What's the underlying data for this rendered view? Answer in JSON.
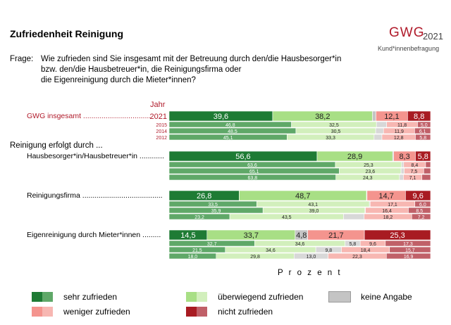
{
  "title": "Zufriedenheit Reinigung",
  "logo": {
    "brand": "GWG",
    "year": "2021",
    "subtitle": "Kund*innenbefragung"
  },
  "question": {
    "label": "Frage:",
    "lines": [
      "Wie zufrieden sind Sie insgesamt mit der Betreuung durch den/die Hausbesorger*in",
      "bzw. den/die Hausbetreuer*in, die Reinigungsfirma oder",
      "die Eigenreinigung durch die Mieter*innen?"
    ]
  },
  "jahr_label": "Jahr",
  "section_heading": "Reinigung erfolgt durch ...",
  "colors": {
    "sehr_zufrieden": [
      "#1e7b34",
      "#5fa868"
    ],
    "ueberwiegend_zufrieden": [
      "#a8df85",
      "#d2efbc"
    ],
    "keine_angabe": [
      "#c4c4c4",
      "#d8d8d8"
    ],
    "weniger_zufrieden": [
      "#f4948e",
      "#f7b7b2"
    ],
    "nicht_zufrieden": [
      "#a81b22",
      "#c06068"
    ]
  },
  "chart_data": {
    "type": "stacked-horizontal-bar",
    "xlabel": "P r o z e n t",
    "xlim": [
      0,
      100
    ],
    "legend": [
      {
        "key": "sehr_zufrieden",
        "label": "sehr zufrieden"
      },
      {
        "key": "ueberwiegend_zufrieden",
        "label": "überwiegend zufrieden"
      },
      {
        "key": "keine_angabe",
        "label": "keine Angabe"
      },
      {
        "key": "weniger_zufrieden",
        "label": "weniger zufrieden"
      },
      {
        "key": "nicht_zufrieden",
        "label": "nicht zufrieden"
      }
    ],
    "groups": [
      {
        "label": "GWG insgesamt .................................",
        "style": "red",
        "rows": [
          {
            "year": "2021",
            "values": [
              39.6,
              38.2,
              1.3,
              12.1,
              8.8
            ],
            "labels": [
              "39,6",
              "38,2",
              "",
              "12,1",
              "8,8"
            ]
          },
          {
            "year": "2015",
            "values": [
              46.8,
              32.5,
              3.9,
              11.8,
              5.0
            ],
            "labels": [
              "46,8",
              "32,5",
              "",
              "11,8",
              "5,0"
            ]
          },
          {
            "year": "2014",
            "values": [
              48.5,
              30.5,
              3.0,
              11.9,
              6.1
            ],
            "labels": [
              "48,5",
              "30,5",
              "",
              "11,9",
              "6,1"
            ]
          },
          {
            "year": "2012",
            "values": [
              45.1,
              33.3,
              3.0,
              12.8,
              5.8
            ],
            "labels": [
              "45,1",
              "33,3",
              "",
              "12,8",
              "5,8"
            ]
          }
        ]
      },
      {
        "label": "Hausbesorger*in/Hausbetreuer*in ............",
        "style": "black",
        "rows": [
          {
            "year": "",
            "values": [
              56.6,
              28.9,
              0.4,
              8.3,
              5.8
            ],
            "labels": [
              "56,6",
              "28,9",
              "",
              "8,3",
              "5,8"
            ]
          },
          {
            "year": "",
            "values": [
              63.6,
              25.3,
              0.8,
              8.4,
              1.9
            ],
            "labels": [
              "63,6",
              "25,3",
              "",
              "8,4",
              ""
            ]
          },
          {
            "year": "",
            "values": [
              65.1,
              23.6,
              1.2,
              7.5,
              2.6
            ],
            "labels": [
              "65,1",
              "23,6",
              "",
              "7,5",
              ""
            ]
          },
          {
            "year": "",
            "values": [
              63.8,
              24.3,
              1.5,
              7.1,
              3.3
            ],
            "labels": [
              "63,8",
              "24,3",
              "",
              "7,1",
              ""
            ]
          }
        ]
      },
      {
        "label": "Reinigungsfirma .......................................",
        "style": "black",
        "rows": [
          {
            "year": "",
            "values": [
              26.8,
              48.7,
              0.2,
              14.7,
              9.6
            ],
            "labels": [
              "26,8",
              "48,7",
              "",
              "14,7",
              "9,6"
            ]
          },
          {
            "year": "",
            "values": [
              33.5,
              43.1,
              0.3,
              17.1,
              6.0
            ],
            "labels": [
              "33,5",
              "43,1",
              "",
              "17,1",
              "6,0"
            ]
          },
          {
            "year": "",
            "values": [
              35.9,
              39.0,
              0.2,
              16.4,
              8.5
            ],
            "labels": [
              "35,9",
              "39,0",
              "",
              "16,4",
              "8,5"
            ]
          },
          {
            "year": "",
            "values": [
              23.2,
              43.5,
              7.9,
              18.2,
              7.2
            ],
            "labels": [
              "23,2",
              "43,5",
              "",
              "18,2",
              "7,2"
            ]
          }
        ]
      },
      {
        "label": "Eigenreinigung durch Mieter*innen  .........",
        "style": "black",
        "rows": [
          {
            "year": "",
            "values": [
              14.5,
              33.7,
              4.8,
              21.7,
              25.3
            ],
            "labels": [
              "14,5",
              "33,7",
              "4,8",
              "21,7",
              "25,3"
            ]
          },
          {
            "year": "",
            "values": [
              32.7,
              34.6,
              5.8,
              9.6,
              17.3
            ],
            "labels": [
              "32,7",
              "34,6",
              "5,8",
              "9,6",
              "17,3"
            ]
          },
          {
            "year": "",
            "values": [
              21.5,
              34.6,
              9.8,
              18.4,
              15.7
            ],
            "labels": [
              "21,5",
              "34,6",
              "9,8",
              "18,4",
              "15,7"
            ]
          },
          {
            "year": "",
            "values": [
              18.0,
              29.8,
              13.0,
              22.3,
              16.9
            ],
            "labels": [
              "18,0",
              "29,8",
              "13,0",
              "22,3",
              "16,9"
            ]
          }
        ]
      }
    ]
  }
}
